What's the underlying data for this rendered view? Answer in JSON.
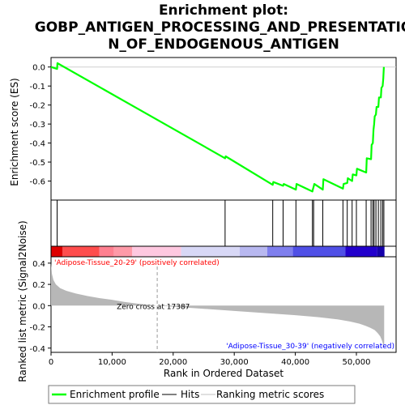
{
  "chart_data": {
    "type": "line",
    "title_lines": [
      "Enrichment plot:",
      "GOBP_ANTIGEN_PROCESSING_AND_PRESENTATIO",
      "N_OF_ENDOGENOUS_ANTIGEN"
    ],
    "xlabel": "Rank in Ordered Dataset",
    "xlim": [
      0,
      56500
    ],
    "xticks": [
      0,
      10000,
      20000,
      30000,
      40000,
      50000
    ],
    "xtick_labels": [
      "0",
      "10,000",
      "20,000",
      "30,000",
      "40,000",
      "50,000"
    ],
    "es_panel": {
      "ylabel": "Enrichment score (ES)",
      "ylim": [
        -0.7,
        0.05
      ],
      "yticks": [
        0.0,
        -0.1,
        -0.2,
        -0.3,
        -0.4,
        -0.5,
        -0.6
      ],
      "ytick_labels": [
        "0.0",
        "-0.1",
        "-0.2",
        "-0.3",
        "-0.4",
        "-0.5",
        "-0.6"
      ],
      "series": [
        {
          "color": "#00ff00",
          "x": [
            0,
            1000,
            1050,
            28500,
            28600,
            36300,
            36400,
            38000,
            38100,
            40100,
            40200,
            42800,
            42900,
            43000,
            43100,
            44500,
            44600,
            47800,
            47900,
            48500,
            48600,
            49300,
            49400,
            50000,
            50100,
            51600,
            51700,
            52400,
            52500,
            52700,
            52800,
            52900,
            53000,
            53200,
            53300,
            53600,
            53700,
            54000,
            54100,
            54300,
            54400,
            54500
          ],
          "y": [
            0.0,
            -0.01,
            0.02,
            -0.48,
            -0.47,
            -0.62,
            -0.605,
            -0.625,
            -0.615,
            -0.645,
            -0.615,
            -0.655,
            -0.64,
            -0.63,
            -0.615,
            -0.645,
            -0.59,
            -0.64,
            -0.615,
            -0.61,
            -0.585,
            -0.6,
            -0.565,
            -0.57,
            -0.535,
            -0.555,
            -0.48,
            -0.485,
            -0.41,
            -0.4,
            -0.33,
            -0.3,
            -0.26,
            -0.25,
            -0.21,
            -0.21,
            -0.16,
            -0.16,
            -0.11,
            -0.1,
            -0.06,
            0.0
          ]
        }
      ]
    },
    "hits": [
      1000,
      28500,
      36300,
      38000,
      40100,
      42800,
      43000,
      44500,
      47800,
      48500,
      49300,
      50000,
      51600,
      52400,
      52700,
      52900,
      53200,
      53600,
      54000,
      54300,
      54500
    ],
    "color_bar": {
      "segments": [
        {
          "x0": 0,
          "x1": 1900,
          "color": "#dd0000"
        },
        {
          "x0": 1900,
          "x1": 7900,
          "color": "#ff4d4d"
        },
        {
          "x0": 7900,
          "x1": 10300,
          "color": "#ff8090"
        },
        {
          "x0": 10300,
          "x1": 13300,
          "color": "#ff9aa8"
        },
        {
          "x0": 13300,
          "x1": 21300,
          "color": "#ffc8e0"
        },
        {
          "x0": 21300,
          "x1": 30900,
          "color": "#d8d8f6"
        },
        {
          "x0": 30900,
          "x1": 35400,
          "color": "#b8b8f0"
        },
        {
          "x0": 35400,
          "x1": 39600,
          "color": "#7f7fee"
        },
        {
          "x0": 39600,
          "x1": 48200,
          "color": "#5050e6"
        },
        {
          "x0": 48200,
          "x1": 53400,
          "color": "#2200cc"
        },
        {
          "x0": 53400,
          "x1": 54600,
          "color": "#1500aa"
        }
      ]
    },
    "metric_panel": {
      "ylabel": "Ranked list metric (Signal2Noise)",
      "ylim": [
        -0.44,
        0.46
      ],
      "yticks": [
        0.4,
        0.2,
        0.0,
        -0.2,
        -0.4
      ],
      "ytick_labels": [
        "0.4",
        "0.2",
        "0.0",
        "-0.2",
        "-0.4"
      ],
      "fill_color": "#b7b7b7",
      "curve": {
        "x": [
          0,
          150,
          400,
          800,
          1500,
          2500,
          4000,
          6000,
          8000,
          10000,
          12000,
          14000,
          16000,
          17387,
          20000,
          25000,
          30000,
          35000,
          40000,
          44000,
          47000,
          49000,
          50500,
          51500,
          52300,
          53000,
          53500,
          53900,
          54200,
          54400,
          54550
        ],
        "y": [
          0.4,
          0.3,
          0.24,
          0.2,
          0.165,
          0.14,
          0.115,
          0.09,
          0.07,
          0.055,
          0.035,
          0.02,
          0.008,
          0.0,
          -0.01,
          -0.03,
          -0.05,
          -0.07,
          -0.09,
          -0.11,
          -0.13,
          -0.15,
          -0.17,
          -0.19,
          -0.21,
          -0.23,
          -0.26,
          -0.29,
          -0.33,
          -0.37,
          -0.41
        ]
      },
      "zero_cross_x": 17387,
      "zero_cross_label": "Zero cross at 17387",
      "positive_label": "'Adipose-Tissue_20-29' (positively correlated)",
      "negative_label": "'Adipose-Tissue_30-39' (negatively correlated)",
      "positive_color": "#ff0000",
      "negative_color": "#0000ff"
    },
    "legend": {
      "entries": [
        {
          "label": "Enrichment profile",
          "color": "#00ff00",
          "kind": "thick-line"
        },
        {
          "label": "Hits",
          "color": "#000000",
          "kind": "line"
        },
        {
          "label": "Ranking metric scores",
          "color": "#c0c0c0",
          "kind": "line"
        }
      ]
    }
  }
}
